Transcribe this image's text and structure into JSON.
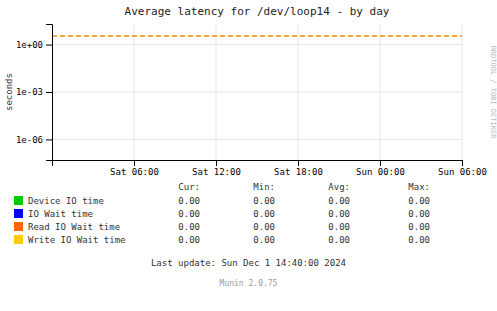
{
  "chart_data": {
    "type": "line",
    "title": "Average latency for /dev/loop14 - by day",
    "y_label": "seconds",
    "log": "y",
    "grid": true,
    "xlim": [
      0,
      30
    ],
    "xticks": [
      {
        "value": 6,
        "label": "Sat 06:00"
      },
      {
        "value": 12,
        "label": "Sat 12:00"
      },
      {
        "value": 18,
        "label": "Sat 18:00"
      },
      {
        "value": 24,
        "label": "Sun 00:00"
      },
      {
        "value": 30,
        "label": "Sun 06:00"
      }
    ],
    "ylim": [
      5e-08,
      20
    ],
    "yticks": [
      {
        "value": 1e-06,
        "label": "1e-06"
      },
      {
        "value": 0.001,
        "label": "1e-03"
      },
      {
        "value": 1,
        "label": "1e+00"
      }
    ],
    "lines": [
      {
        "value": 3.5,
        "color": "#ff8800",
        "line_style": "dashed"
      }
    ],
    "table_columns": [
      "Cur:",
      "Min:",
      "Avg:",
      "Max:"
    ],
    "series": [
      {
        "name": "Device IO time",
        "color": "#00cc00",
        "stats": [
          0,
          0,
          0,
          0
        ],
        "stat_labels": [
          "0.00",
          "0.00",
          "0.00",
          "0.00"
        ]
      },
      {
        "name": "IO Wait time",
        "color": "#0000ff",
        "stats": [
          0,
          0,
          0,
          0
        ],
        "stat_labels": [
          "0.00",
          "0.00",
          "0.00",
          "0.00"
        ]
      },
      {
        "name": "Read IO Wait time",
        "color": "#ff6600",
        "stats": [
          0,
          0,
          0,
          0
        ],
        "stat_labels": [
          "0.00",
          "0.00",
          "0.00",
          "0.00"
        ]
      },
      {
        "name": "Write IO Wait time",
        "color": "#ffcc00",
        "stats": [
          0,
          0,
          0,
          0
        ],
        "stat_labels": [
          "0.00",
          "0.00",
          "0.00",
          "0.00"
        ]
      }
    ],
    "annotations": [
      "Last update: Sun Dec  1 14:40:00 2024",
      "Munin 2.0.75",
      "RRDTOOL / TOBI OETIKER"
    ]
  }
}
